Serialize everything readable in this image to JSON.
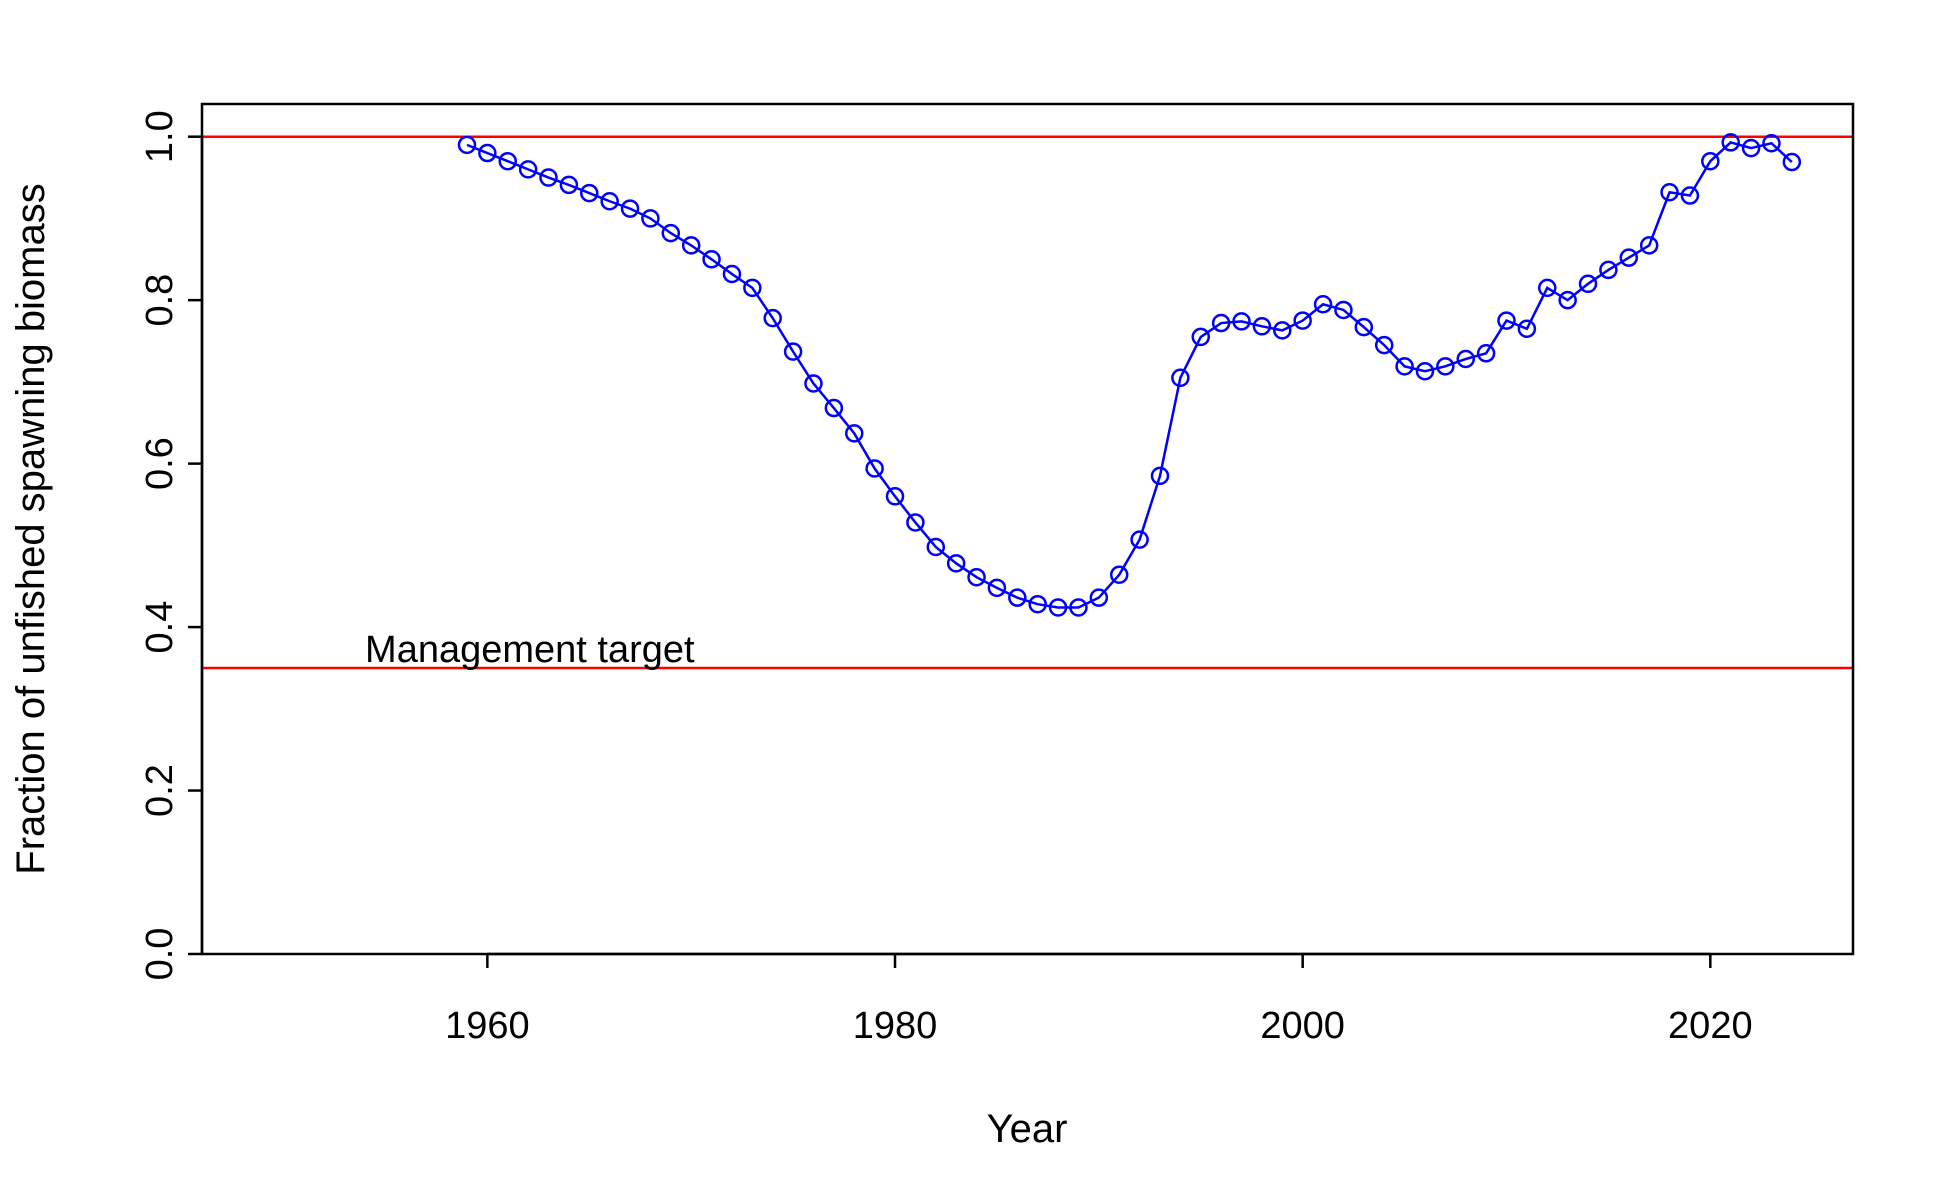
{
  "chart_data": {
    "type": "line",
    "title": "",
    "xlabel": "Year",
    "ylabel": "Fraction of unfished spawning biomass",
    "xlim": [
      1946,
      2027
    ],
    "ylim": [
      0,
      1.04
    ],
    "x_ticks": [
      "1960",
      "1980",
      "2000",
      "2020"
    ],
    "y_ticks": [
      "0.0",
      "0.2",
      "0.4",
      "0.6",
      "0.8",
      "1.0"
    ],
    "grid": false,
    "legend": "none",
    "series": [
      {
        "color": "#0000ff",
        "marker": "open-circle",
        "x": [
          1959,
          1960,
          1961,
          1962,
          1963,
          1964,
          1965,
          1966,
          1967,
          1968,
          1969,
          1970,
          1971,
          1972,
          1973,
          1974,
          1975,
          1976,
          1977,
          1978,
          1979,
          1980,
          1981,
          1982,
          1983,
          1984,
          1985,
          1986,
          1987,
          1988,
          1989,
          1990,
          1991,
          1992,
          1993,
          1994,
          1995,
          1996,
          1997,
          1998,
          1999,
          2000,
          2001,
          2002,
          2003,
          2004,
          2005,
          2006,
          2007,
          2008,
          2009,
          2010,
          2011,
          2012,
          2013,
          2014,
          2015,
          2016,
          2017,
          2018,
          2019,
          2020,
          2021,
          2022,
          2023,
          2024
        ],
        "y": [
          0.99,
          0.98,
          0.97,
          0.96,
          0.95,
          0.941,
          0.931,
          0.921,
          0.912,
          0.9,
          0.882,
          0.867,
          0.85,
          0.832,
          0.815,
          0.778,
          0.737,
          0.698,
          0.668,
          0.637,
          0.594,
          0.56,
          0.528,
          0.498,
          0.478,
          0.461,
          0.448,
          0.436,
          0.428,
          0.424,
          0.424,
          0.436,
          0.464,
          0.507,
          0.585,
          0.705,
          0.755,
          0.772,
          0.774,
          0.768,
          0.763,
          0.775,
          0.795,
          0.788,
          0.767,
          0.745,
          0.719,
          0.713,
          0.719,
          0.728,
          0.735,
          0.775,
          0.765,
          0.815,
          0.8,
          0.82,
          0.837,
          0.852,
          0.867,
          0.932,
          0.928,
          0.97,
          0.993,
          0.986,
          0.992,
          0.969
        ]
      }
    ],
    "reference_lines": [
      {
        "y": 1.0,
        "color": "#ff0000"
      },
      {
        "y": 0.35,
        "color": "#ff0000",
        "label": "Management target"
      }
    ],
    "annotations": [
      {
        "text": "Management target",
        "x": 1954,
        "y": 0.35
      }
    ]
  }
}
